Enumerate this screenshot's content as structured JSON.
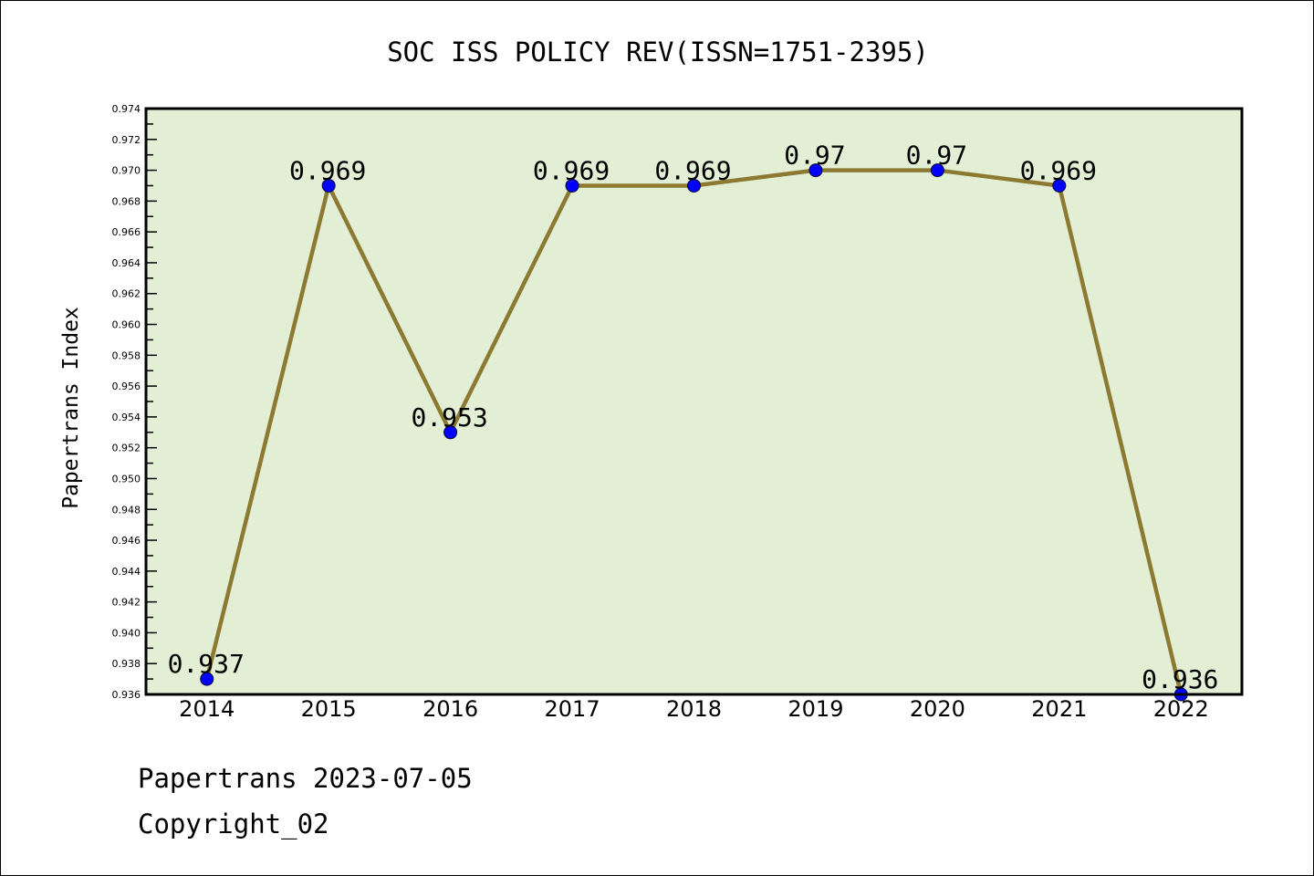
{
  "chart_data": {
    "type": "line",
    "title": "SOC ISS POLICY REV(ISSN=1751-2395)",
    "xlabel": "",
    "ylabel": "Papertrans Index",
    "x": [
      "2014",
      "2015",
      "2016",
      "2017",
      "2018",
      "2019",
      "2020",
      "2021",
      "2022"
    ],
    "series": [
      {
        "name": "Papertrans Index",
        "values": [
          0.937,
          0.969,
          0.953,
          0.969,
          0.969,
          0.97,
          0.97,
          0.969,
          0.936
        ],
        "labels": [
          "0.937",
          "0.969",
          "0.953",
          "0.969",
          "0.969",
          "0.97",
          "0.97",
          "0.969",
          "0.936"
        ]
      }
    ],
    "ylim": [
      0.936,
      0.974
    ],
    "yticks": [
      "0.936",
      "0.938",
      "0.940",
      "0.942",
      "0.944",
      "0.946",
      "0.948",
      "0.950",
      "0.952",
      "0.954",
      "0.956",
      "0.958",
      "0.960",
      "0.962",
      "0.964",
      "0.966",
      "0.968",
      "0.970",
      "0.972",
      "0.974"
    ],
    "grid": false,
    "colors": {
      "plot_bg": "#e2efd5",
      "line": "#8c7a32",
      "marker": "#0000ff"
    }
  },
  "footer": {
    "line1": "Papertrans 2023-07-05",
    "line2": "Copyright_02"
  }
}
